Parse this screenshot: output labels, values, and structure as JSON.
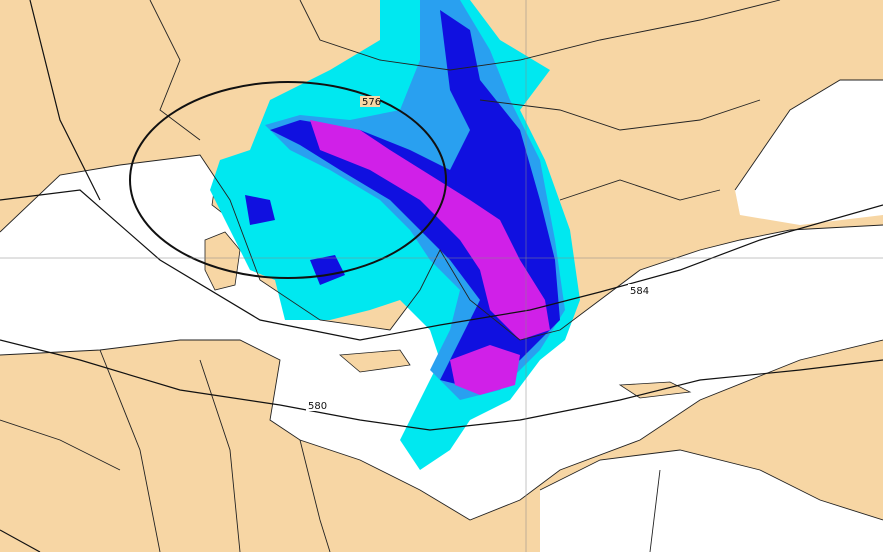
{
  "map": {
    "type": "weather forecast map",
    "region": "Mediterranean",
    "colors": {
      "land": "#f7d6a4",
      "sea": "#ffffff",
      "precip_light": "#00e8f0",
      "precip_medium": "#29a0f0",
      "precip_heavy": "#1010e0",
      "precip_extreme": "#d020e8",
      "contour": "#111111"
    },
    "contour_labels": [
      "576",
      "584",
      "580"
    ]
  }
}
